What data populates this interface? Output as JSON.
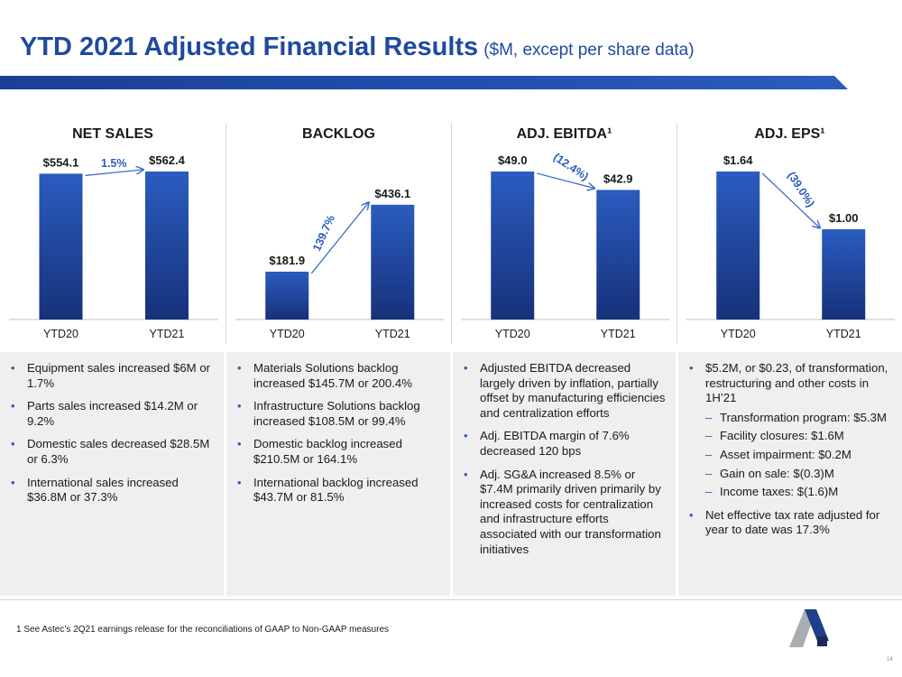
{
  "title": {
    "main": "YTD 2021 Adjusted Financial Results",
    "sub": "($M, except per share data)"
  },
  "colors": {
    "bar_top": "#2a5cbf",
    "bar_bottom": "#17317a",
    "arrow": "#3c6fc4",
    "change_label": "#2a5cbf",
    "panel_bg": "#efefef"
  },
  "chart_data": [
    {
      "type": "bar",
      "title": "NET SALES",
      "categories": [
        "YTD20",
        "YTD21"
      ],
      "values": [
        554.1,
        562.4
      ],
      "value_labels": [
        "$554.1",
        "$562.4"
      ],
      "change_label": "1.5%",
      "ylim": [
        0,
        562.4
      ]
    },
    {
      "type": "bar",
      "title": "BACKLOG",
      "categories": [
        "YTD20",
        "YTD21"
      ],
      "values": [
        181.9,
        436.1
      ],
      "value_labels": [
        "$181.9",
        "$436.1"
      ],
      "change_label": "139.7%",
      "ylim": [
        0,
        562.4
      ]
    },
    {
      "type": "bar",
      "title": "ADJ. EBITDA¹",
      "categories": [
        "YTD20",
        "YTD21"
      ],
      "values": [
        49.0,
        42.9
      ],
      "value_labels": [
        "$49.0",
        "$42.9"
      ],
      "change_label": "(12.4%)",
      "ylim": [
        0,
        49.0
      ]
    },
    {
      "type": "bar",
      "title": "ADJ. EPS¹",
      "categories": [
        "YTD20",
        "YTD21"
      ],
      "values": [
        1.64,
        1.0
      ],
      "value_labels": [
        "$1.64",
        "$1.00"
      ],
      "change_label": "(39.0%)",
      "ylim": [
        0,
        1.64
      ]
    }
  ],
  "panels": [
    {
      "bullets": [
        {
          "text": "Equipment sales increased $6M or 1.7%"
        },
        {
          "text": "Parts sales increased $14.2M or 9.2%"
        },
        {
          "text": "Domestic sales decreased $28.5M or 6.3%"
        },
        {
          "text": "International sales increased $36.8M or 37.3%"
        }
      ]
    },
    {
      "bullets": [
        {
          "text": "Materials Solutions backlog increased $145.7M or 200.4%"
        },
        {
          "text": "Infrastructure Solutions backlog increased $108.5M or 99.4%"
        },
        {
          "text": "Domestic backlog increased $210.5M or 164.1%"
        },
        {
          "text": "International backlog increased $43.7M or 81.5%"
        }
      ]
    },
    {
      "bullets": [
        {
          "text": "Adjusted EBITDA decreased largely driven by inflation, partially offset by manufacturing efficiencies and centralization efforts"
        },
        {
          "text": "Adj. EBITDA margin of 7.6% decreased 120 bps"
        },
        {
          "text": "Adj. SG&A increased 8.5% or $7.4M primarily driven primarily by increased costs for centralization and infrastructure efforts associated with our transformation initiatives"
        }
      ]
    },
    {
      "bullets": [
        {
          "text": "$5.2M, or $0.23, of transformation, restructuring and other costs in 1H’21",
          "sub": [
            "Transformation program: $5.3M",
            "Facility closures: $1.6M",
            "Asset impairment: $0.2M",
            "Gain on sale: $(0.3)M",
            "Income taxes: $(1.6)M"
          ]
        },
        {
          "text": "Net effective tax rate adjusted for year to date was 17.3%"
        }
      ]
    }
  ],
  "footnote": "1 See Astec’s 2Q21 earnings release for the reconciliations of GAAP to Non-GAAP measures",
  "page_number": "14"
}
